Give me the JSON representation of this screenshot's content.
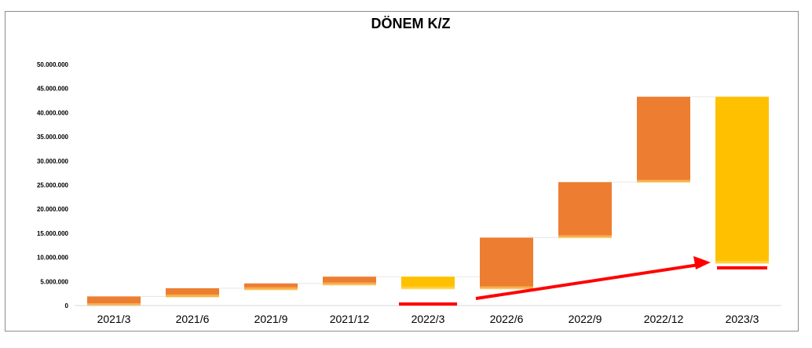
{
  "chart_data": {
    "type": "bar",
    "title": "DÖNEM K/Z",
    "categories": [
      "2021/3",
      "2021/6",
      "2021/9",
      "2021/12",
      "2022/3",
      "2022/6",
      "2022/9",
      "2022/12",
      "2023/3"
    ],
    "series": [
      {
        "kind": "waterfall-floating",
        "ranges": [
          [
            0,
            1900000
          ],
          [
            1800000,
            3600000
          ],
          [
            3300000,
            4600000
          ],
          [
            4300000,
            6000000
          ],
          [
            3500000,
            6000000
          ],
          [
            3500000,
            14100000
          ],
          [
            14100000,
            25600000
          ],
          [
            25600000,
            43300000
          ],
          [
            8800000,
            43300000
          ]
        ]
      }
    ],
    "ylim": [
      0,
      50000000
    ],
    "yticks": [
      "0",
      "5.000.000",
      "10.000.000",
      "15.000.000",
      "20.000.000",
      "25.000.000",
      "30.000.000",
      "35.000.000",
      "40.000.000",
      "45.000.000",
      "50.000.000"
    ],
    "ytick_values": [
      0,
      5000000,
      10000000,
      15000000,
      20000000,
      25000000,
      30000000,
      35000000,
      40000000,
      45000000,
      50000000
    ],
    "grid": false,
    "colors": {
      "increase": "#ED7D31",
      "highlight": "#FFC000",
      "annotation": "#FF0000"
    },
    "highlighted_categories": [
      "2022/3",
      "2023/3"
    ]
  }
}
